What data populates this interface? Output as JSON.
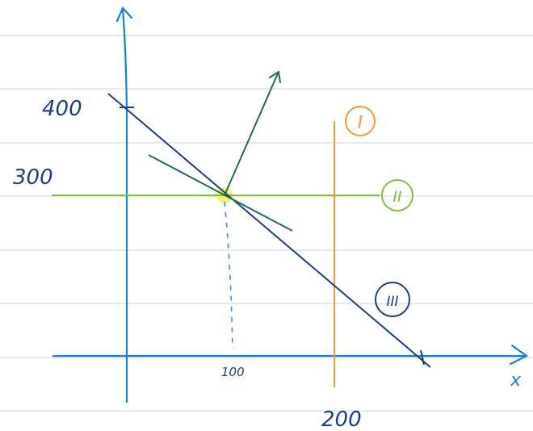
{
  "labels": {
    "y_400": "400",
    "y_300": "300",
    "x_100": "100",
    "x_200": "200",
    "axis_x": "x",
    "constraint_1": "I",
    "constraint_2": "II",
    "constraint_3": "III"
  },
  "colors": {
    "notebook_rule": "#d9d9d9",
    "axis": "#1a7fe0",
    "constraint_1": "#f29a3a",
    "constraint_2": "#7cc43a",
    "constraint_3": "#1a3f8a",
    "objective": "#1f6e4c",
    "optimum_highlight": "#f4ee55",
    "dashed_guide": "#3a8ee6",
    "text": "#1a3f8a"
  },
  "icons": {
    "optimum": "highlight-dot-icon",
    "gradient": "arrow-icon"
  }
}
